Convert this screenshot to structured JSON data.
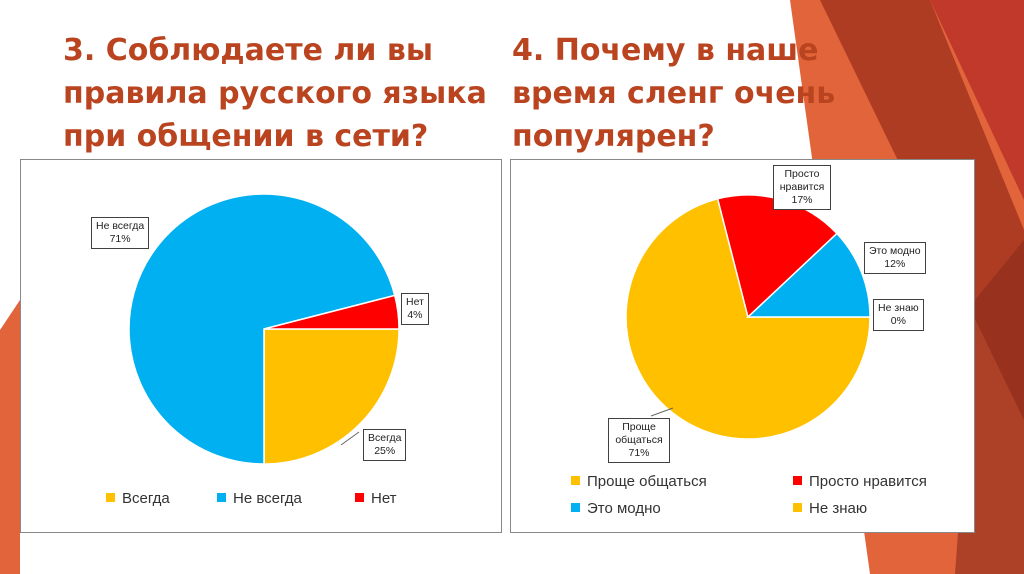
{
  "slide": {
    "accent_color": "#b9441f",
    "deco_colors": [
      "#c0392b",
      "#e2643a",
      "#a33520",
      "#8b2a1a"
    ]
  },
  "title_left": "3. Соблюдаете ли вы правила русского языка при общении в сети?",
  "title_right": "4. Почему в наше время сленг очень популярен?",
  "chart_data": [
    {
      "type": "pie",
      "title": "",
      "slices": [
        {
          "label": "Всегда",
          "value": 25,
          "value_label": "25%",
          "color": "#ffc000"
        },
        {
          "label": "Не всегда",
          "value": 71,
          "value_label": "71%",
          "color": "#00b0f0"
        },
        {
          "label": "Нет",
          "value": 4,
          "value_label": "4%",
          "color": "#ff0000"
        }
      ],
      "start": "3 o'clock",
      "direction": "clockwise",
      "legend": [
        "Всегда",
        "Не всегда",
        "Нет"
      ],
      "legend_position": "bottom"
    },
    {
      "type": "pie",
      "title": "",
      "slices": [
        {
          "label": "Проще общаться",
          "value": 71,
          "value_label": "71%",
          "color": "#ffc000"
        },
        {
          "label": "Просто нравится",
          "value": 17,
          "value_label": "17%",
          "color": "#ff0000"
        },
        {
          "label": "Это модно",
          "value": 12,
          "value_label": "12%",
          "color": "#00b0f0"
        },
        {
          "label": "Не знаю",
          "value": 0,
          "value_label": "0%",
          "color": "#ffc000"
        }
      ],
      "start": "3 o'clock",
      "direction": "clockwise",
      "legend": [
        "Проще общаться",
        "Просто нравится",
        "Это модно",
        "Не знаю"
      ],
      "legend_position": "bottom"
    }
  ]
}
